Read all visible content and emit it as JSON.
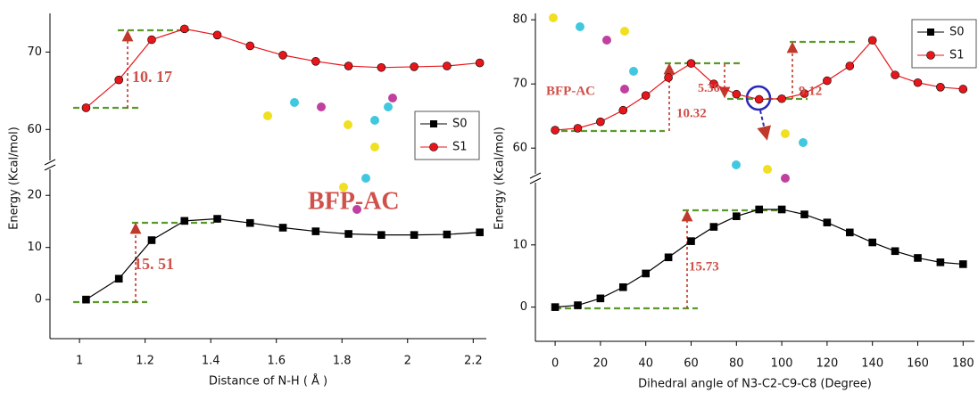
{
  "chart_data": [
    {
      "type": "line",
      "xlabel": "Distance of N-H ( Å )",
      "ylabel": "Energy (Kcal/mol)",
      "x": [
        1.02,
        1.12,
        1.22,
        1.32,
        1.42,
        1.52,
        1.62,
        1.72,
        1.82,
        1.92,
        2.02,
        2.12,
        2.22
      ],
      "xlim": [
        0.91,
        2.24
      ],
      "xticks": [
        1.0,
        1.2,
        1.4,
        1.6,
        1.8,
        2.0,
        2.2
      ],
      "y_segments": [
        {
          "ylim": [
            -7.5,
            25
          ],
          "yticks": [
            0,
            10,
            20
          ]
        },
        {
          "ylim": [
            56,
            75
          ],
          "yticks": [
            60,
            70
          ]
        }
      ],
      "legend": "right",
      "series": [
        {
          "name": "S0",
          "color": "#000000",
          "marker": "square",
          "values": [
            0,
            4,
            11.4,
            15.1,
            15.5,
            14.7,
            13.8,
            13.1,
            12.6,
            12.4,
            12.4,
            12.5,
            12.9
          ]
        },
        {
          "name": "S1",
          "color": "#e8161b",
          "marker": "circle",
          "values": [
            62.8,
            66.4,
            71.6,
            73.0,
            72.2,
            70.8,
            69.6,
            68.8,
            68.2,
            68.0,
            68.1,
            68.2,
            68.6
          ]
        }
      ],
      "annotations": [
        "10. 17",
        "15. 51",
        "BFP-AC"
      ]
    },
    {
      "type": "line",
      "xlabel": "Dihedral angle of N3-C2-C9-C8 (Degree)",
      "ylabel": "Energy (Kcal/mol)",
      "x": [
        0,
        10,
        20,
        30,
        40,
        50,
        60,
        70,
        80,
        90,
        100,
        110,
        120,
        130,
        140,
        150,
        160,
        170,
        180
      ],
      "xlim": [
        -8.7,
        185
      ],
      "xticks": [
        0,
        20,
        40,
        60,
        80,
        100,
        120,
        140,
        160,
        180
      ],
      "y_segments": [
        {
          "ylim": [
            -5.5,
            20
          ],
          "yticks": [
            0,
            10
          ]
        },
        {
          "ylim": [
            56,
            81
          ],
          "yticks": [
            60,
            70,
            80
          ]
        }
      ],
      "legend": "upper right",
      "series": [
        {
          "name": "S0",
          "color": "#000000",
          "marker": "square",
          "values": [
            0,
            0.3,
            1.4,
            3.2,
            5.4,
            8.0,
            10.6,
            12.9,
            14.6,
            15.7,
            15.7,
            14.9,
            13.6,
            12.0,
            10.4,
            9.0,
            7.9,
            7.2,
            6.9
          ]
        },
        {
          "name": "S1",
          "color": "#e8161b",
          "marker": "circle",
          "values": [
            62.8,
            63.1,
            64.1,
            65.9,
            68.2,
            71.0,
            73.2,
            70.0,
            68.4,
            67.6,
            67.7,
            68.5,
            70.5,
            72.8,
            76.8,
            71.4,
            70.2,
            69.5,
            69.2
          ]
        }
      ],
      "annotations": [
        "BFP-AC",
        "10.32",
        "5.36",
        "9.12",
        "15.73"
      ]
    }
  ]
}
